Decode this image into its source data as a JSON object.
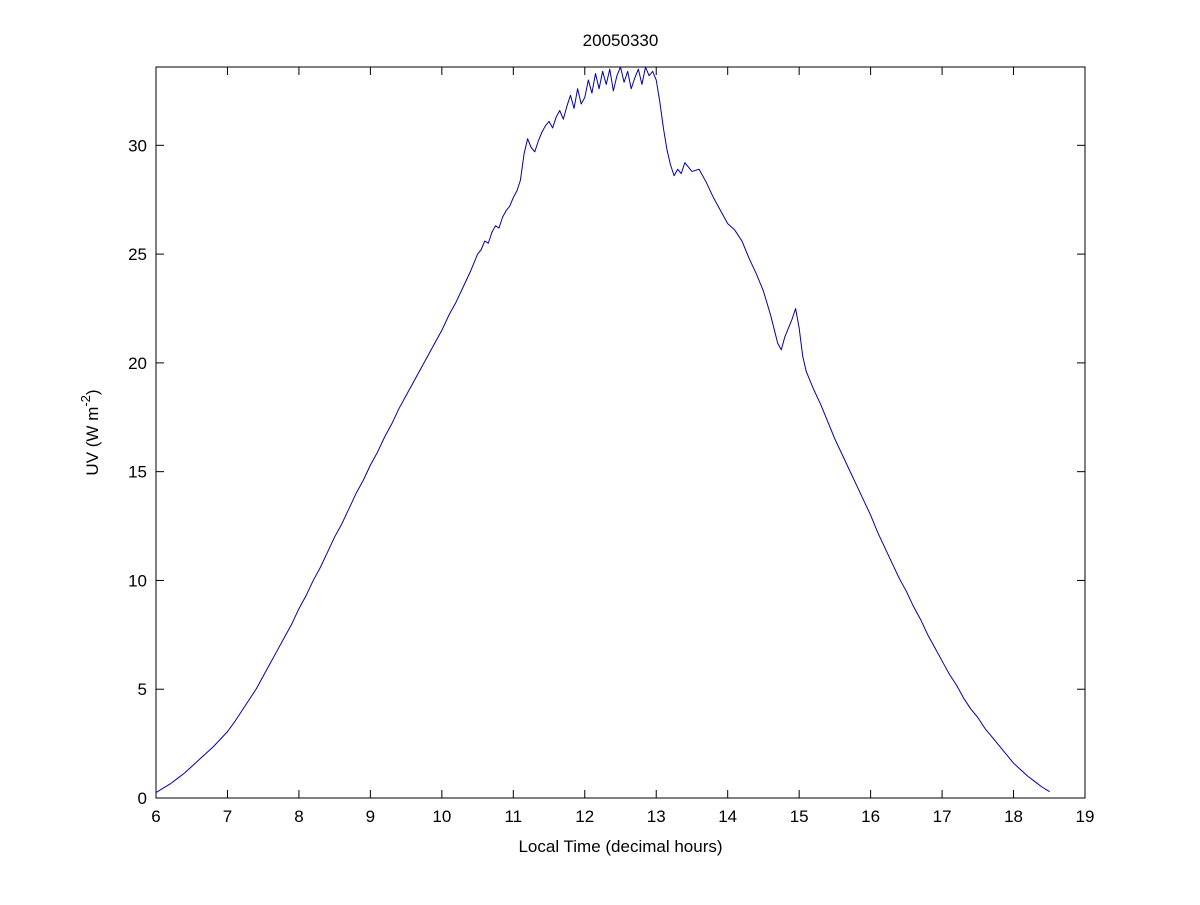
{
  "figure": {
    "title": "20050330",
    "xlabel": "Local Time (decimal hours)",
    "ylabel_pre": "UV (W m",
    "ylabel_sup": "-2",
    "ylabel_post": ")",
    "background": "#ffffff",
    "axis_color": "#000000"
  },
  "chart_data": {
    "type": "line",
    "title": "20050330",
    "xlabel": "Local Time (decimal hours)",
    "ylabel": "UV (W m^{-2})",
    "xlim": [
      6,
      19
    ],
    "ylim": [
      0,
      33.6
    ],
    "xticks": [
      6,
      7,
      8,
      9,
      10,
      11,
      12,
      13,
      14,
      15,
      16,
      17,
      18,
      19
    ],
    "yticks": [
      0,
      5,
      10,
      15,
      20,
      25,
      30
    ],
    "grid": false,
    "legend": null,
    "line_color": "#0000aa",
    "line_width": 1,
    "points": [
      [
        6.0,
        0.25
      ],
      [
        6.1,
        0.45
      ],
      [
        6.2,
        0.65
      ],
      [
        6.3,
        0.9
      ],
      [
        6.4,
        1.15
      ],
      [
        6.5,
        1.45
      ],
      [
        6.6,
        1.75
      ],
      [
        6.7,
        2.05
      ],
      [
        6.8,
        2.35
      ],
      [
        6.9,
        2.7
      ],
      [
        7.0,
        3.05
      ],
      [
        7.1,
        3.5
      ],
      [
        7.2,
        4.0
      ],
      [
        7.3,
        4.5
      ],
      [
        7.4,
        5.0
      ],
      [
        7.5,
        5.6
      ],
      [
        7.6,
        6.2
      ],
      [
        7.7,
        6.8
      ],
      [
        7.8,
        7.4
      ],
      [
        7.9,
        8.0
      ],
      [
        8.0,
        8.7
      ],
      [
        8.1,
        9.3
      ],
      [
        8.2,
        10.0
      ],
      [
        8.3,
        10.6
      ],
      [
        8.4,
        11.3
      ],
      [
        8.5,
        12.0
      ],
      [
        8.6,
        12.6
      ],
      [
        8.7,
        13.3
      ],
      [
        8.8,
        14.0
      ],
      [
        8.9,
        14.6
      ],
      [
        9.0,
        15.3
      ],
      [
        9.1,
        15.9
      ],
      [
        9.2,
        16.6
      ],
      [
        9.3,
        17.2
      ],
      [
        9.4,
        17.9
      ],
      [
        9.5,
        18.5
      ],
      [
        9.6,
        19.1
      ],
      [
        9.7,
        19.7
      ],
      [
        9.8,
        20.3
      ],
      [
        9.9,
        20.9
      ],
      [
        10.0,
        21.5
      ],
      [
        10.1,
        22.2
      ],
      [
        10.2,
        22.8
      ],
      [
        10.3,
        23.5
      ],
      [
        10.4,
        24.2
      ],
      [
        10.5,
        25.0
      ],
      [
        10.55,
        25.2
      ],
      [
        10.6,
        25.6
      ],
      [
        10.65,
        25.5
      ],
      [
        10.7,
        26.0
      ],
      [
        10.75,
        26.3
      ],
      [
        10.8,
        26.2
      ],
      [
        10.85,
        26.7
      ],
      [
        10.9,
        27.0
      ],
      [
        10.95,
        27.2
      ],
      [
        11.0,
        27.6
      ],
      [
        11.05,
        27.9
      ],
      [
        11.1,
        28.4
      ],
      [
        11.15,
        29.6
      ],
      [
        11.2,
        30.3
      ],
      [
        11.25,
        29.9
      ],
      [
        11.3,
        29.7
      ],
      [
        11.35,
        30.2
      ],
      [
        11.4,
        30.6
      ],
      [
        11.45,
        30.9
      ],
      [
        11.5,
        31.1
      ],
      [
        11.55,
        30.8
      ],
      [
        11.6,
        31.3
      ],
      [
        11.65,
        31.6
      ],
      [
        11.7,
        31.2
      ],
      [
        11.75,
        31.8
      ],
      [
        11.8,
        32.3
      ],
      [
        11.85,
        31.7
      ],
      [
        11.9,
        32.6
      ],
      [
        11.95,
        31.9
      ],
      [
        12.0,
        32.2
      ],
      [
        12.05,
        33.0
      ],
      [
        12.1,
        32.4
      ],
      [
        12.15,
        33.3
      ],
      [
        12.2,
        32.6
      ],
      [
        12.25,
        33.4
      ],
      [
        12.3,
        32.8
      ],
      [
        12.35,
        33.5
      ],
      [
        12.4,
        32.5
      ],
      [
        12.45,
        33.2
      ],
      [
        12.5,
        33.6
      ],
      [
        12.55,
        32.9
      ],
      [
        12.6,
        33.4
      ],
      [
        12.65,
        32.6
      ],
      [
        12.7,
        33.1
      ],
      [
        12.75,
        33.5
      ],
      [
        12.8,
        32.8
      ],
      [
        12.85,
        33.6
      ],
      [
        12.9,
        33.2
      ],
      [
        12.95,
        33.4
      ],
      [
        13.0,
        33.0
      ],
      [
        13.05,
        32.0
      ],
      [
        13.1,
        30.8
      ],
      [
        13.15,
        29.8
      ],
      [
        13.2,
        29.1
      ],
      [
        13.25,
        28.6
      ],
      [
        13.3,
        28.9
      ],
      [
        13.35,
        28.7
      ],
      [
        13.4,
        29.2
      ],
      [
        13.45,
        29.0
      ],
      [
        13.5,
        28.8
      ],
      [
        13.6,
        28.9
      ],
      [
        13.7,
        28.3
      ],
      [
        13.8,
        27.6
      ],
      [
        13.9,
        27.0
      ],
      [
        14.0,
        26.4
      ],
      [
        14.1,
        26.1
      ],
      [
        14.2,
        25.6
      ],
      [
        14.3,
        24.8
      ],
      [
        14.4,
        24.1
      ],
      [
        14.5,
        23.3
      ],
      [
        14.6,
        22.2
      ],
      [
        14.7,
        20.9
      ],
      [
        14.75,
        20.6
      ],
      [
        14.8,
        21.2
      ],
      [
        14.9,
        22.0
      ],
      [
        14.95,
        22.5
      ],
      [
        15.0,
        21.6
      ],
      [
        15.05,
        20.3
      ],
      [
        15.1,
        19.6
      ],
      [
        15.2,
        18.8
      ],
      [
        15.3,
        18.1
      ],
      [
        15.4,
        17.3
      ],
      [
        15.5,
        16.5
      ],
      [
        15.6,
        15.8
      ],
      [
        15.7,
        15.1
      ],
      [
        15.8,
        14.4
      ],
      [
        15.9,
        13.7
      ],
      [
        16.0,
        13.0
      ],
      [
        16.1,
        12.2
      ],
      [
        16.2,
        11.5
      ],
      [
        16.3,
        10.8
      ],
      [
        16.4,
        10.1
      ],
      [
        16.5,
        9.5
      ],
      [
        16.6,
        8.8
      ],
      [
        16.7,
        8.2
      ],
      [
        16.8,
        7.5
      ],
      [
        16.9,
        6.9
      ],
      [
        17.0,
        6.3
      ],
      [
        17.1,
        5.7
      ],
      [
        17.2,
        5.2
      ],
      [
        17.3,
        4.6
      ],
      [
        17.4,
        4.1
      ],
      [
        17.5,
        3.7
      ],
      [
        17.6,
        3.2
      ],
      [
        17.7,
        2.8
      ],
      [
        17.8,
        2.4
      ],
      [
        17.9,
        2.0
      ],
      [
        18.0,
        1.6
      ],
      [
        18.1,
        1.3
      ],
      [
        18.2,
        1.0
      ],
      [
        18.3,
        0.75
      ],
      [
        18.4,
        0.5
      ],
      [
        18.5,
        0.3
      ]
    ]
  }
}
